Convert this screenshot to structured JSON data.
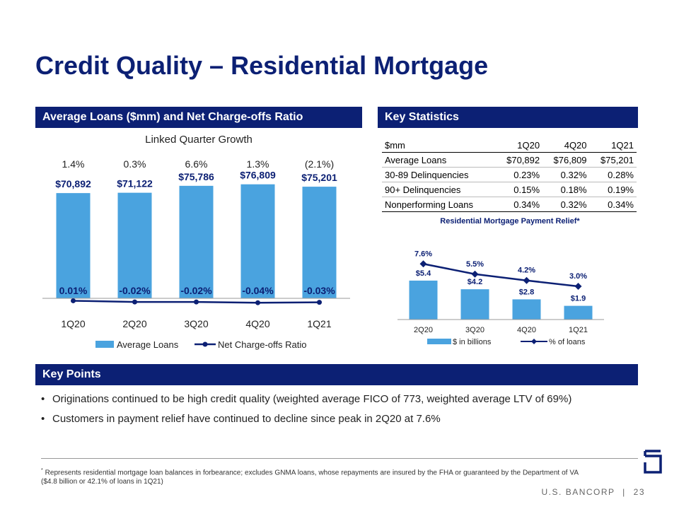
{
  "page": {
    "title": "Credit Quality – Residential Mortgage",
    "left_section": "Average Loans ($mm) and Net Charge-offs Ratio",
    "right_section": "Key Statistics",
    "key_points_section": "Key Points"
  },
  "chart_data": [
    {
      "type": "bar",
      "title": "",
      "subtitle": "Linked Quarter Growth",
      "categories": [
        "1Q20",
        "2Q20",
        "3Q20",
        "4Q20",
        "1Q21"
      ],
      "growth_labels": [
        "1.4%",
        "0.3%",
        "6.6%",
        "1.3%",
        "(2.1%)"
      ],
      "series": [
        {
          "name": "Average Loans",
          "type": "bar",
          "values": [
            70892,
            71122,
            75786,
            76809,
            75201
          ],
          "labels": [
            "$70,892",
            "$71,122",
            "$75,786",
            "$76,809",
            "$75,201"
          ],
          "color": "#4aa3df"
        },
        {
          "name": "Net Charge-offs Ratio",
          "type": "line",
          "values": [
            0.01,
            -0.02,
            -0.02,
            -0.04,
            -0.03
          ],
          "labels": [
            "0.01%",
            "-0.02%",
            "-0.02%",
            "-0.04%",
            "-0.03%"
          ],
          "color": "#0c2074"
        }
      ],
      "legend": "bottom",
      "grid": false
    },
    {
      "type": "bar",
      "title": "Residential Mortgage Payment Relief*",
      "categories": [
        "2Q20",
        "3Q20",
        "4Q20",
        "1Q21"
      ],
      "series": [
        {
          "name": "$ in billions",
          "type": "bar",
          "values": [
            5.4,
            4.2,
            2.8,
            1.9
          ],
          "labels": [
            "$5.4",
            "$4.2",
            "$2.8",
            "$1.9"
          ],
          "color": "#4aa3df"
        },
        {
          "name": "% of loans",
          "type": "line",
          "values": [
            7.6,
            5.5,
            4.2,
            3.0
          ],
          "labels": [
            "7.6%",
            "5.5%",
            "4.2%",
            "3.0%"
          ],
          "color": "#0c2074"
        }
      ],
      "legend": "bottom",
      "grid": false
    }
  ],
  "key_statistics": {
    "headers": [
      "$mm",
      "1Q20",
      "4Q20",
      "1Q21"
    ],
    "rows": [
      [
        "Average Loans",
        "$70,892",
        "$76,809",
        "$75,201"
      ],
      [
        "30-89 Delinquencies",
        "0.23%",
        "0.32%",
        "0.28%"
      ],
      [
        "90+ Delinquencies",
        "0.15%",
        "0.18%",
        "0.19%"
      ],
      [
        "Nonperforming Loans",
        "0.34%",
        "0.32%",
        "0.34%"
      ]
    ]
  },
  "key_points": [
    "Originations continued to be high credit quality (weighted average FICO of 773, weighted average LTV of 69%)",
    "Customers in payment relief have continued to decline since peak in 2Q20 at 7.6%"
  ],
  "bullet": "•",
  "footnote_mark": "*",
  "footnote": "Represents residential mortgage loan balances in forbearance; excludes GNMA loans, whose repayments are insured by the FHA or guaranteed by the Department of VA ($4.8 billion or 42.1% of loans in 1Q21)",
  "footer": {
    "brand": "U.S. BANCORP",
    "separator": "|",
    "page_number": "23"
  },
  "colors": {
    "navy": "#0c2074",
    "bar_blue": "#4aa3df"
  }
}
